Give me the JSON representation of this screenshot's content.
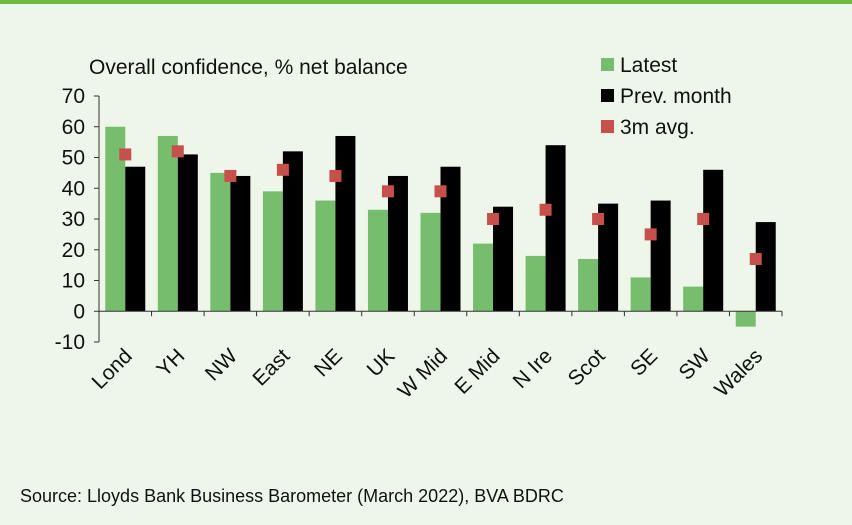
{
  "chart_data": {
    "type": "bar",
    "title": "Overall confidence, % net balance",
    "source": "Source: Lloyds Bank Business Barometer (March 2022), BVA BDRC",
    "categories": [
      "Lond",
      "YH",
      "NW",
      "East",
      "NE",
      "UK",
      "W Mid",
      "E Mid",
      "N Ire",
      "Scot",
      "SE",
      "SW",
      "Wales"
    ],
    "series": [
      {
        "name": "Latest",
        "kind": "bar",
        "color": "#77bd6e",
        "values": [
          60,
          57,
          45,
          39,
          36,
          33,
          32,
          22,
          18,
          17,
          11,
          8,
          -5
        ]
      },
      {
        "name": "Prev. month",
        "kind": "bar",
        "color": "#000000",
        "values": [
          47,
          51,
          44,
          52,
          57,
          44,
          47,
          34,
          54,
          35,
          36,
          46,
          29
        ]
      },
      {
        "name": "3m avg.",
        "kind": "marker",
        "color": "#c8504a",
        "values": [
          51,
          52,
          44,
          46,
          44,
          39,
          39,
          30,
          33,
          30,
          25,
          30,
          17
        ]
      }
    ],
    "ylim": [
      -10,
      70
    ],
    "yticks": [
      -10,
      0,
      10,
      20,
      30,
      40,
      50,
      60,
      70
    ],
    "legend_position": "top-right",
    "grid": false
  }
}
